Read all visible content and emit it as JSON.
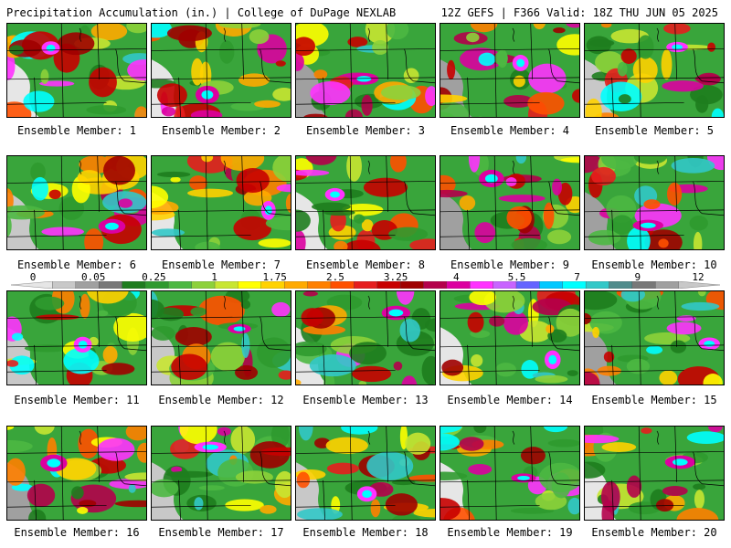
{
  "header": {
    "left": "Precipitation Accumulation (in.) | College of DuPage NEXLAB",
    "right": "12Z GEFS | F366 Valid: 18Z THU JUN 05 2025"
  },
  "scale": {
    "labels": [
      "0",
      "0.05",
      "0.25",
      "1",
      "1.75",
      "2.5",
      "3.25",
      "4",
      "5.5",
      "7",
      "9",
      "12"
    ],
    "colors": [
      "#e6e6e6",
      "#c8c8c8",
      "#a0a0a0",
      "#787878",
      "#1e7d1e",
      "#2f9a2f",
      "#4cb842",
      "#8dd13a",
      "#c8e632",
      "#ffff00",
      "#ffd200",
      "#ffaa00",
      "#ff8000",
      "#ff5000",
      "#e61e1e",
      "#c80000",
      "#a00000",
      "#b4004b",
      "#dc00a0",
      "#ff32ff",
      "#c864ff",
      "#6464ff",
      "#00c8ff",
      "#00ffff",
      "#32c8c8",
      "#508c8c",
      "#787878",
      "#a0a0a0",
      "#c8c8c8"
    ]
  },
  "members": [
    {
      "label": "Ensemble Member: 1"
    },
    {
      "label": "Ensemble Member: 2"
    },
    {
      "label": "Ensemble Member: 3"
    },
    {
      "label": "Ensemble Member: 4"
    },
    {
      "label": "Ensemble Member: 5"
    },
    {
      "label": "Ensemble Member: 6"
    },
    {
      "label": "Ensemble Member: 7"
    },
    {
      "label": "Ensemble Member: 8"
    },
    {
      "label": "Ensemble Member: 9"
    },
    {
      "label": "Ensemble Member: 10"
    },
    {
      "label": "Ensemble Member: 11"
    },
    {
      "label": "Ensemble Member: 12"
    },
    {
      "label": "Ensemble Member: 13"
    },
    {
      "label": "Ensemble Member: 14"
    },
    {
      "label": "Ensemble Member: 15"
    },
    {
      "label": "Ensemble Member: 16"
    },
    {
      "label": "Ensemble Member: 17"
    },
    {
      "label": "Ensemble Member: 18"
    },
    {
      "label": "Ensemble Member: 19"
    },
    {
      "label": "Ensemble Member: 20"
    }
  ]
}
